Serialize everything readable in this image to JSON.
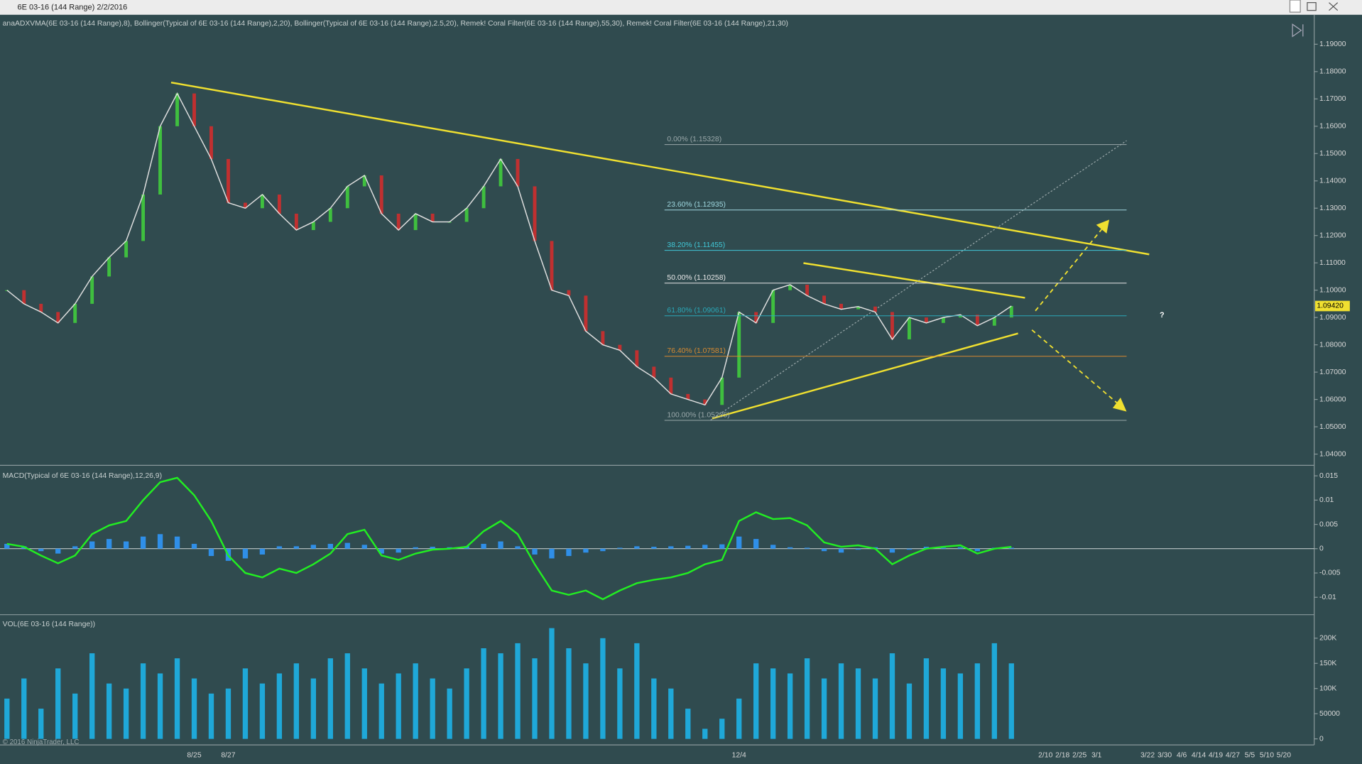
{
  "window": {
    "title": "6E 03-16 (144 Range)  2/2/2016",
    "copyright": "© 2016 NinjaTrader, LLC",
    "question": "?"
  },
  "chart_data": [
    {
      "type": "line",
      "title": "anaADXVMA(6E 03-16 (144 Range),8), Bollinger(Typical of 6E 03-16 (144 Range),2,20), Bollinger(Typical of 6E 03-16 (144 Range),2.5,20), Remek! Coral Filter(6E 03-16 (144 Range),55,30), Remek! Coral Filter(6E 03-16 (144 Range),21,30)",
      "categories": [
        null,
        null,
        null,
        null,
        null,
        null,
        null,
        null,
        null,
        null,
        null,
        "8/25",
        null,
        "8/27",
        null,
        null,
        null,
        null,
        null,
        null,
        null,
        null,
        null,
        null,
        null,
        null,
        null,
        null,
        null,
        null,
        null,
        null,
        null,
        null,
        null,
        null,
        null,
        null,
        null,
        null,
        null,
        null,
        null,
        "12/4",
        null,
        null,
        null,
        null,
        null,
        null,
        null,
        null,
        null,
        null,
        null,
        null,
        null,
        null,
        null,
        null,
        null,
        "2/10",
        "2/18",
        "2/25",
        "3/1",
        null,
        null,
        "3/22",
        "3/30",
        "4/6",
        "4/14",
        "4/19",
        "4/27",
        "5/5",
        "5/10",
        "5/20",
        null,
        null
      ],
      "color": "#e0e0e0",
      "values": [
        1.1,
        1.095,
        1.092,
        1.088,
        1.095,
        1.105,
        1.112,
        1.118,
        1.135,
        1.16,
        1.172,
        1.16,
        1.148,
        1.132,
        1.13,
        1.135,
        1.128,
        1.122,
        1.125,
        1.13,
        1.138,
        1.142,
        1.128,
        1.122,
        1.128,
        1.125,
        1.125,
        1.13,
        1.138,
        1.148,
        1.138,
        1.118,
        1.1,
        1.098,
        1.085,
        1.08,
        1.078,
        1.072,
        1.068,
        1.062,
        1.06,
        1.058,
        1.068,
        1.092,
        1.088,
        1.1,
        1.102,
        1.098,
        1.095,
        1.093,
        1.094,
        1.092,
        1.082,
        1.09,
        1.088,
        1.09,
        1.091,
        1.087,
        1.09,
        1.0942,
        null,
        null,
        null,
        null,
        null,
        null,
        null,
        null,
        null,
        null,
        null,
        null,
        null,
        null,
        null,
        null,
        null,
        null
      ],
      "ylim": [
        1.0362,
        1.2008
      ],
      "yticks": [
        {
          "value": 1.04,
          "label": "1.04000"
        },
        {
          "value": 1.05,
          "label": "1.05000"
        },
        {
          "value": 1.06,
          "label": "1.06000"
        },
        {
          "value": 1.07,
          "label": "1.07000"
        },
        {
          "value": 1.08,
          "label": "1.08000"
        },
        {
          "value": 1.09,
          "label": "1.09000"
        },
        {
          "value": 1.1,
          "label": "1.10000"
        },
        {
          "value": 1.11,
          "label": "1.11000"
        },
        {
          "value": 1.12,
          "label": "1.12000"
        },
        {
          "value": 1.13,
          "label": "1.13000"
        },
        {
          "value": 1.14,
          "label": "1.14000"
        },
        {
          "value": 1.15,
          "label": "1.15000"
        },
        {
          "value": 1.16,
          "label": "1.16000"
        },
        {
          "value": 1.17,
          "label": "1.17000"
        },
        {
          "value": 1.18,
          "label": "1.18000"
        },
        {
          "value": 1.19,
          "label": "1.19000"
        }
      ],
      "fib_levels": [
        {
          "label": "0.00% (1.15328)",
          "value": 1.15328,
          "color": "#9aa8aa"
        },
        {
          "label": "23.60% (1.12935)",
          "value": 1.12935,
          "color": "#9fd8e0"
        },
        {
          "label": "38.20% (1.11455)",
          "value": 1.11455,
          "color": "#40c8d8"
        },
        {
          "label": "50.00% (1.10258)",
          "value": 1.10258,
          "color": "#e8e8e8"
        },
        {
          "label": "61.80% (1.09061)",
          "value": 1.09061,
          "color": "#2aa8b8"
        },
        {
          "label": "76.40% (1.07581)",
          "value": 1.07581,
          "color": "#d88a30"
        },
        {
          "label": "100.00% (1.05235)",
          "value": 1.05235,
          "color": "#9aa8aa"
        }
      ],
      "last_price": {
        "value": 1.0942,
        "label": "1.09420"
      }
    },
    {
      "type": "macd",
      "title": "MACD(Typical of 6E 03-16 (144 Range),12,26,9)",
      "ylim": [
        -0.0134,
        0.0168
      ],
      "yticks": [
        0.015,
        0.01,
        0.005,
        0,
        -0.005,
        -0.01
      ],
      "series": [
        {
          "type": "bar",
          "color": "#2f8fe8",
          "values": [
            0.001,
            0.0005,
            -0.0005,
            -0.001,
            0.0005,
            0.0015,
            0.002,
            0.0015,
            0.0025,
            0.003,
            0.0025,
            0.001,
            -0.0015,
            -0.0025,
            -0.002,
            -0.0012,
            0.0005,
            0.0005,
            0.0008,
            0.001,
            0.0012,
            0.0008,
            -0.001,
            -0.0008,
            0.0003,
            0.0004,
            0.0003,
            0.0005,
            0.001,
            0.0015,
            0.0005,
            -0.0012,
            -0.002,
            -0.0015,
            -0.0008,
            -0.0005,
            0.0002,
            0.0005,
            0.0004,
            0.0005,
            0.0006,
            0.0008,
            0.0009,
            0.0025,
            0.002,
            0.0008,
            0.0003,
            0.0002,
            -0.0005,
            -0.0008,
            -0.0002,
            0.0003,
            -0.0008,
            -0.0002,
            0.0004,
            0.0002,
            0.0003,
            -0.0005,
            0.0002,
            0.0002,
            null,
            null,
            null,
            null,
            null,
            null,
            null,
            null,
            null,
            null,
            null,
            null,
            null,
            null,
            null,
            null,
            null,
            null
          ]
        },
        {
          "type": "line",
          "color": "#22ee22",
          "values": [
            0.001,
            0.0004,
            -0.0014,
            -0.003,
            -0.0014,
            0.003,
            0.0048,
            0.0057,
            0.01,
            0.0137,
            0.0146,
            0.011,
            0.0057,
            -0.0014,
            -0.005,
            -0.0059,
            -0.0041,
            -0.005,
            -0.0032,
            -0.001,
            0.003,
            0.0039,
            -0.0014,
            -0.0023,
            -0.001,
            -0.0002,
            0,
            0.0004,
            0.0036,
            0.0057,
            0.003,
            -0.0032,
            -0.0086,
            -0.0095,
            -0.0086,
            -0.0104,
            -0.0086,
            -0.0071,
            -0.0064,
            -0.0059,
            -0.005,
            -0.0032,
            -0.0023,
            0.0057,
            0.0075,
            0.0061,
            0.0063,
            0.0048,
            0.0013,
            0.0004,
            0.0007,
            0,
            -0.0032,
            -0.0014,
            0,
            0.0004,
            0.0007,
            -0.001,
            0,
            0.0004,
            null,
            null,
            null,
            null,
            null,
            null,
            null,
            null,
            null,
            null,
            null,
            null,
            null,
            null,
            null,
            null,
            null,
            null
          ]
        }
      ]
    },
    {
      "type": "bar",
      "title": "VOL(6E 03-16 (144 Range))",
      "color": "#1fa8d8",
      "ylim": [
        -12000,
        245000
      ],
      "yticks": [
        0,
        50000,
        {
          "value": 100000,
          "label": "100K"
        },
        {
          "value": 150000,
          "label": "150K"
        },
        {
          "value": 200000,
          "label": "200K"
        }
      ],
      "values": [
        80000,
        120000,
        60000,
        140000,
        90000,
        170000,
        110000,
        100000,
        150000,
        130000,
        160000,
        120000,
        90000,
        100000,
        140000,
        110000,
        130000,
        150000,
        120000,
        160000,
        170000,
        140000,
        110000,
        130000,
        150000,
        120000,
        100000,
        140000,
        180000,
        170000,
        190000,
        160000,
        220000,
        180000,
        150000,
        200000,
        140000,
        190000,
        120000,
        100000,
        60000,
        20000,
        40000,
        80000,
        150000,
        140000,
        130000,
        160000,
        120000,
        150000,
        140000,
        120000,
        170000,
        110000,
        160000,
        140000,
        130000,
        150000,
        190000,
        150000,
        null,
        null,
        null,
        null,
        null,
        null,
        null,
        null,
        null,
        null,
        null,
        null,
        null,
        null,
        null,
        null,
        null,
        null
      ]
    }
  ]
}
